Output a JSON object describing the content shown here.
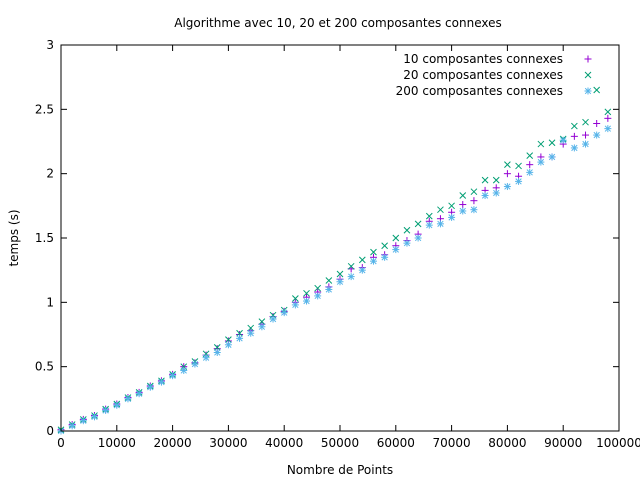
{
  "chart_data": {
    "type": "scatter",
    "title": "Algorithme avec 10, 20 et 200 composantes connexes",
    "xlabel": "Nombre de Points",
    "ylabel": "temps (s)",
    "xlim": [
      0,
      100000
    ],
    "ylim": [
      0,
      3
    ],
    "xticks": [
      "0",
      "10000",
      "20000",
      "30000",
      "40000",
      "50000",
      "60000",
      "70000",
      "80000",
      "90000",
      "100000"
    ],
    "yticks": [
      "0",
      "0.5",
      "1",
      "1.5",
      "2",
      "2.5",
      "3"
    ],
    "grid": false,
    "legend_position": "top-right",
    "series": [
      {
        "name": "10 composantes connexes",
        "marker": "plus",
        "color": "#9400d3",
        "x": [
          0,
          2000,
          4000,
          6000,
          8000,
          10000,
          12000,
          14000,
          16000,
          18000,
          20000,
          22000,
          24000,
          26000,
          28000,
          30000,
          32000,
          34000,
          36000,
          38000,
          40000,
          42000,
          44000,
          46000,
          48000,
          50000,
          52000,
          54000,
          56000,
          58000,
          60000,
          62000,
          64000,
          66000,
          68000,
          70000,
          72000,
          74000,
          76000,
          78000,
          80000,
          82000,
          84000,
          86000,
          88000,
          90000,
          92000,
          94000,
          96000,
          98000
        ],
        "y": [
          0.01,
          0.05,
          0.09,
          0.12,
          0.17,
          0.21,
          0.26,
          0.3,
          0.35,
          0.39,
          0.44,
          0.5,
          0.53,
          0.59,
          0.64,
          0.7,
          0.75,
          0.78,
          0.83,
          0.89,
          0.93,
          1.0,
          1.04,
          1.08,
          1.12,
          1.18,
          1.26,
          1.27,
          1.35,
          1.37,
          1.44,
          1.48,
          1.53,
          1.63,
          1.65,
          1.7,
          1.76,
          1.79,
          1.87,
          1.89,
          2.0,
          1.98,
          2.07,
          2.13,
          2.13,
          2.23,
          2.29,
          2.3,
          2.39,
          2.43
        ]
      },
      {
        "name": "20 composantes connexes",
        "marker": "x",
        "color": "#009e73",
        "x": [
          0,
          2000,
          4000,
          6000,
          8000,
          10000,
          12000,
          14000,
          16000,
          18000,
          20000,
          22000,
          24000,
          26000,
          28000,
          30000,
          32000,
          34000,
          36000,
          38000,
          40000,
          42000,
          44000,
          46000,
          48000,
          50000,
          52000,
          54000,
          56000,
          58000,
          60000,
          62000,
          64000,
          66000,
          68000,
          70000,
          72000,
          74000,
          76000,
          78000,
          80000,
          82000,
          84000,
          86000,
          88000,
          90000,
          92000,
          94000,
          96000,
          98000
        ],
        "y": [
          0.01,
          0.05,
          0.09,
          0.12,
          0.17,
          0.21,
          0.26,
          0.3,
          0.35,
          0.39,
          0.44,
          0.5,
          0.54,
          0.6,
          0.65,
          0.71,
          0.76,
          0.8,
          0.85,
          0.9,
          0.94,
          1.03,
          1.07,
          1.11,
          1.17,
          1.22,
          1.28,
          1.33,
          1.39,
          1.44,
          1.5,
          1.56,
          1.61,
          1.67,
          1.72,
          1.75,
          1.83,
          1.86,
          1.95,
          1.95,
          2.07,
          2.06,
          2.14,
          2.23,
          2.24,
          2.27,
          2.37,
          2.4,
          2.65,
          2.48
        ]
      },
      {
        "name": "200 composantes connexes",
        "marker": "asterisk",
        "color": "#56b4e9",
        "x": [
          0,
          2000,
          4000,
          6000,
          8000,
          10000,
          12000,
          14000,
          16000,
          18000,
          20000,
          22000,
          24000,
          26000,
          28000,
          30000,
          32000,
          34000,
          36000,
          38000,
          40000,
          42000,
          44000,
          46000,
          48000,
          50000,
          52000,
          54000,
          56000,
          58000,
          60000,
          62000,
          64000,
          66000,
          68000,
          70000,
          72000,
          74000,
          76000,
          78000,
          80000,
          82000,
          84000,
          86000,
          88000,
          90000,
          92000,
          94000,
          96000,
          98000
        ],
        "y": [
          0.0,
          0.04,
          0.08,
          0.11,
          0.16,
          0.2,
          0.25,
          0.29,
          0.34,
          0.38,
          0.43,
          0.47,
          0.52,
          0.57,
          0.61,
          0.67,
          0.72,
          0.76,
          0.81,
          0.87,
          0.92,
          0.98,
          1.01,
          1.05,
          1.1,
          1.16,
          1.2,
          1.25,
          1.32,
          1.35,
          1.41,
          1.46,
          1.5,
          1.6,
          1.61,
          1.66,
          1.71,
          1.72,
          1.83,
          1.85,
          1.9,
          1.94,
          2.01,
          2.09,
          2.13,
          2.26,
          2.2,
          2.23,
          2.3,
          2.35
        ]
      }
    ]
  }
}
